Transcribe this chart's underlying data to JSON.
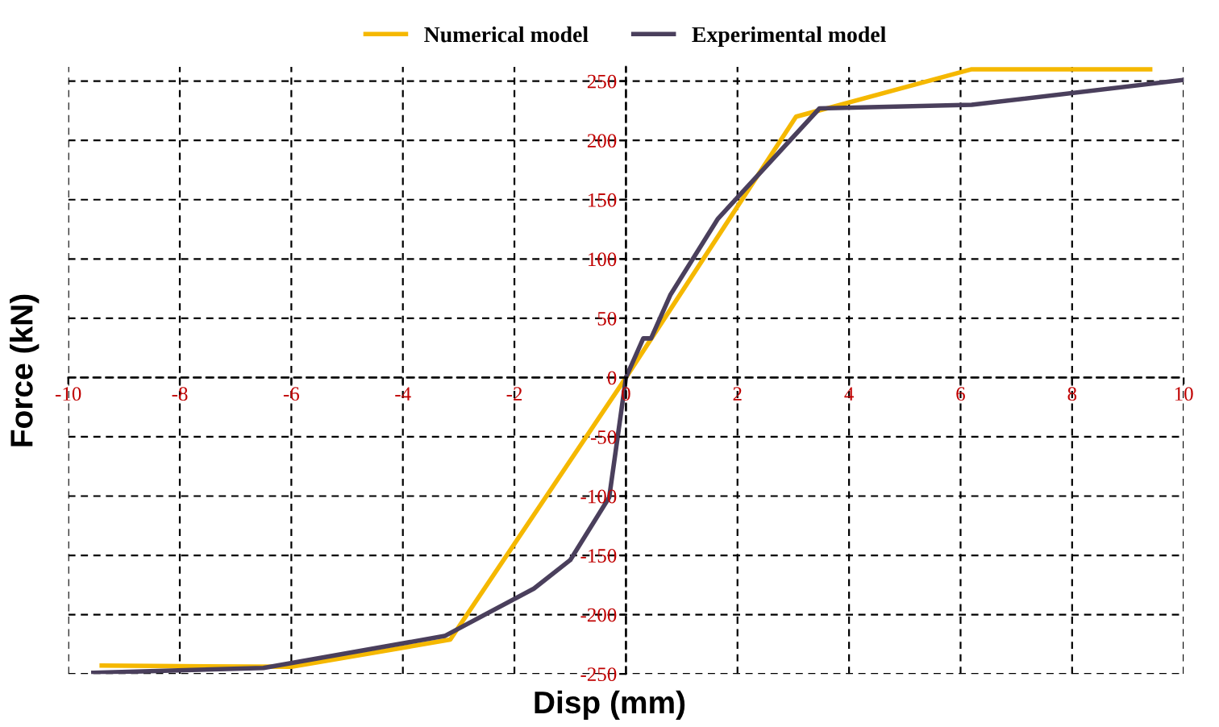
{
  "chart_data": {
    "type": "line",
    "xlabel": "Disp (mm)",
    "ylabel": "Force (kN)",
    "xlim": [
      -10,
      10
    ],
    "ylim": [
      -250,
      262
    ],
    "xticks": [
      -10,
      -8,
      -6,
      -4,
      -2,
      0,
      2,
      4,
      6,
      8,
      10
    ],
    "yticks": [
      -250,
      -200,
      -150,
      -100,
      -50,
      0,
      50,
      100,
      150,
      200,
      250
    ],
    "grid": true,
    "legend": "top",
    "line_style": "solid",
    "marker": "none",
    "series": [
      {
        "name": "Numerical model",
        "color": "#f5b800",
        "x": [
          -9.4,
          -6.0,
          -3.15,
          0,
          3.05,
          6.2,
          9.4
        ],
        "values": [
          -243,
          -244,
          -221,
          0,
          220,
          260,
          260
        ]
      },
      {
        "name": "Experimental model",
        "color": "#4a3f5c",
        "x": [
          -9.55,
          -6.5,
          -3.25,
          -1.65,
          -1.0,
          -0.3,
          0,
          0.31,
          0.45,
          0.8,
          1.65,
          3.47,
          6.2,
          10
        ],
        "values": [
          -249,
          -245,
          -218,
          -178,
          -154,
          -101,
          0,
          33,
          33,
          70,
          134,
          227,
          230,
          251
        ]
      }
    ]
  }
}
